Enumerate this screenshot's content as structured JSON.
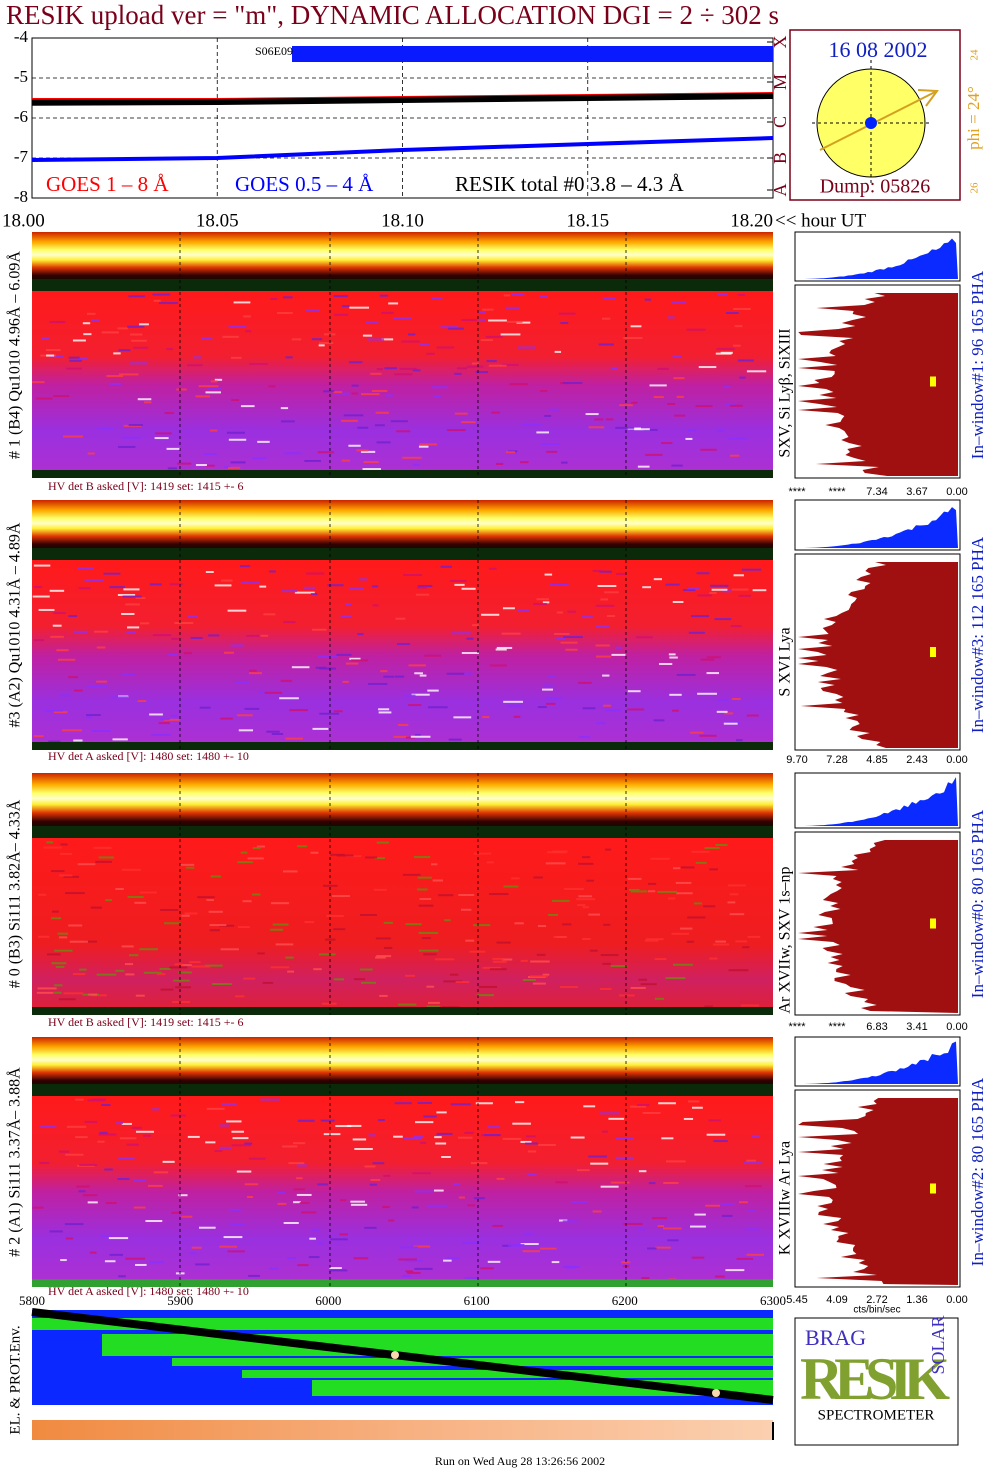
{
  "title": "RESIK upload ver = \"m\", DYNAMIC ALLOCATION  DGI =   2 ÷ 302 s",
  "chart_data": {
    "type": "line",
    "x": [
      18,
      18.05,
      18.1,
      18.15,
      18.2
    ],
    "xlim": [
      18,
      18.2
    ],
    "xticks": [
      {
        "value": 18,
        "label": "18.00"
      },
      {
        "value": 18.05,
        "label": "18.05"
      },
      {
        "value": 18.1,
        "label": "18.10"
      },
      {
        "value": 18.15,
        "label": "18.15"
      },
      {
        "value": 18.2,
        "label": "18.20"
      }
    ],
    "x_axis_label": "<< hour UT",
    "ylim": [
      -8,
      -4
    ],
    "yticks": [
      -4,
      -5,
      -6,
      -7,
      -8
    ],
    "y2ticks": [
      {
        "value": -7.8,
        "label": "A"
      },
      {
        "value": -7.0,
        "label": "B"
      },
      {
        "value": -6.1,
        "label": "C"
      },
      {
        "value": -5.1,
        "label": "M"
      },
      {
        "value": -4.1,
        "label": "X"
      }
    ],
    "grid": true,
    "annotation": "S06E09",
    "series": [
      {
        "name": "GOES 1 – 8 Å",
        "color": "#ff0000",
        "values": [
          -5.55,
          -5.55,
          -5.5,
          -5.45,
          -5.4
        ]
      },
      {
        "name": "GOES 0.5 – 4 Å",
        "color": "#0000ff",
        "values": [
          -7.05,
          -7.0,
          -6.8,
          -6.65,
          -6.5
        ]
      },
      {
        "name": "RESIK total #0  3.8 – 4.3 Å",
        "color": "#000000",
        "values": [
          -5.62,
          -5.6,
          -5.55,
          -5.5,
          -5.45
        ]
      }
    ]
  },
  "sun": {
    "date": "16 08 2002",
    "phi": "phi = 24°",
    "scale_top": "24",
    "scale_bottom": "26",
    "dump": "Dump: 05826"
  },
  "panels": [
    {
      "label": "# 1 (B4) Qu1010 4.96Å – 6.09Å",
      "lines": "SXV, Si Lyβ, SiXIII",
      "window": "In–window#1:  96 165 PHA",
      "hv": "HV det B asked [V]:  1419 set:  1415 +-    6",
      "hist_ticks": [
        "****",
        "****",
        "7.34",
        "3.67",
        "0.00"
      ]
    },
    {
      "label": "#3 (A2) Qu1010  4.31Å – 4.89Å",
      "lines": "S XVI Lya",
      "window": "In–window#3:  112 165 PHA",
      "hv": "HV det A asked [V]:  1480 set:  1480 +-    10",
      "hist_ticks": [
        "9.70",
        "7.28",
        "4.85",
        "2.43",
        "0.00"
      ]
    },
    {
      "label": "# 0 (B3) Si111  3.82Å– 4.33Å",
      "lines": "Ar XVIIw,  SXV 1s–np",
      "window": "In–window#0:  80 165 PHA",
      "hv": "HV det B asked [V]:  1419 set:  1415 +-    6",
      "hist_ticks": [
        "****",
        "****",
        "6.83",
        "3.41",
        "0.00"
      ]
    },
    {
      "label": "# 2 (A1) Si111  3.37Å– 3.88Å",
      "lines": "K XVIIIw  Ar Lya",
      "window": "In–window#2:  80 165 PHA",
      "hv": "HV det A asked [V]:  1480 set:  1480 +-    10",
      "hist_ticks": [
        "5.45",
        "4.09",
        "2.72",
        "1.36",
        "0.00"
      ]
    }
  ],
  "hist_unit": "cts/bin/sec",
  "bottom": {
    "label": "EL. & PROT.Env.",
    "xticks": [
      "5800",
      "5900",
      "6000",
      "6100",
      "6200",
      "6300"
    ]
  },
  "logo": {
    "top": "BRAG",
    "middle": "RESIK",
    "side": "SOLAR",
    "bottom": "SPECTROMETER"
  },
  "footer": "Run on Wed Aug 28 13:26:56 2002"
}
